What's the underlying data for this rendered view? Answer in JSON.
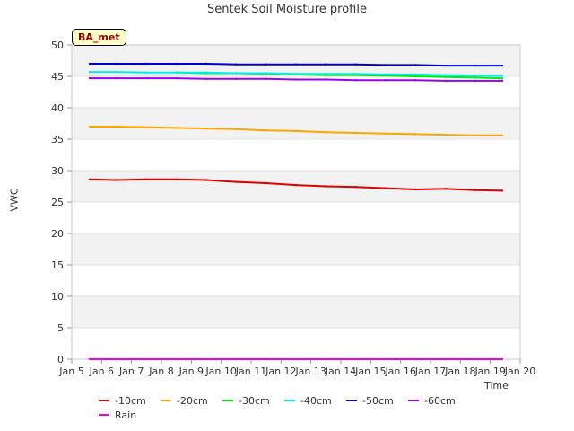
{
  "chart_data": {
    "type": "line",
    "title": "Sentek Soil Moisture profile",
    "badge": "BA_met",
    "xlabel": "Time",
    "ylabel": "VWC",
    "x_ticks": [
      "Jan 5",
      "Jan 6",
      "Jan 7",
      "Jan 8",
      "Jan 9",
      "Jan 10",
      "Jan 11",
      "Jan 12",
      "Jan 13",
      "Jan 14",
      "Jan 15",
      "Jan 16",
      "Jan 17",
      "Jan 18",
      "Jan 19",
      "Jan 20"
    ],
    "y_ticks": [
      0,
      5,
      10,
      15,
      20,
      25,
      30,
      35,
      40,
      45,
      50
    ],
    "ylim": [
      0,
      50
    ],
    "grid": "horizontal bands",
    "legend_position": "bottom",
    "x_days": [
      5.6,
      6.5,
      7.5,
      8.5,
      9.5,
      10.5,
      11.5,
      12.5,
      13.5,
      14.5,
      15.5,
      16.5,
      17.5,
      18.5,
      19.4
    ],
    "series": [
      {
        "name": "-10cm",
        "color": "#dd0000",
        "values": [
          28.6,
          28.5,
          28.6,
          28.6,
          28.5,
          28.2,
          28.0,
          27.7,
          27.5,
          27.4,
          27.2,
          27.0,
          27.1,
          26.9,
          26.8
        ]
      },
      {
        "name": "-20cm",
        "color": "#ffa500",
        "values": [
          37.0,
          37.0,
          36.9,
          36.8,
          36.7,
          36.6,
          36.4,
          36.3,
          36.1,
          36.0,
          35.9,
          35.8,
          35.7,
          35.6,
          35.6
        ]
      },
      {
        "name": "-30cm",
        "color": "#00ee00",
        "values": [
          null,
          null,
          null,
          45.6,
          45.5,
          45.5,
          45.4,
          45.3,
          45.2,
          45.2,
          45.1,
          45.0,
          44.9,
          44.8,
          44.7
        ]
      },
      {
        "name": "-40cm",
        "color": "#00eeee",
        "values": [
          45.7,
          45.7,
          45.6,
          45.6,
          45.6,
          45.5,
          45.5,
          45.4,
          45.4,
          45.4,
          45.3,
          45.3,
          45.2,
          45.1,
          45.1
        ]
      },
      {
        "name": "-50cm",
        "color": "#0000cc",
        "values": [
          47.0,
          47.0,
          47.0,
          47.0,
          47.0,
          46.9,
          46.9,
          46.9,
          46.9,
          46.9,
          46.8,
          46.8,
          46.7,
          46.7,
          46.7
        ]
      },
      {
        "name": "-60cm",
        "color": "#9900ee",
        "values": [
          44.7,
          44.7,
          44.7,
          44.7,
          44.6,
          44.6,
          44.6,
          44.5,
          44.5,
          44.4,
          44.4,
          44.4,
          44.3,
          44.3,
          44.3
        ]
      },
      {
        "name": "Rain",
        "color": "#ee00ee",
        "values": [
          0,
          0,
          0,
          0,
          0,
          0,
          0,
          0,
          0,
          0,
          0,
          0,
          0,
          0,
          0
        ]
      }
    ]
  }
}
